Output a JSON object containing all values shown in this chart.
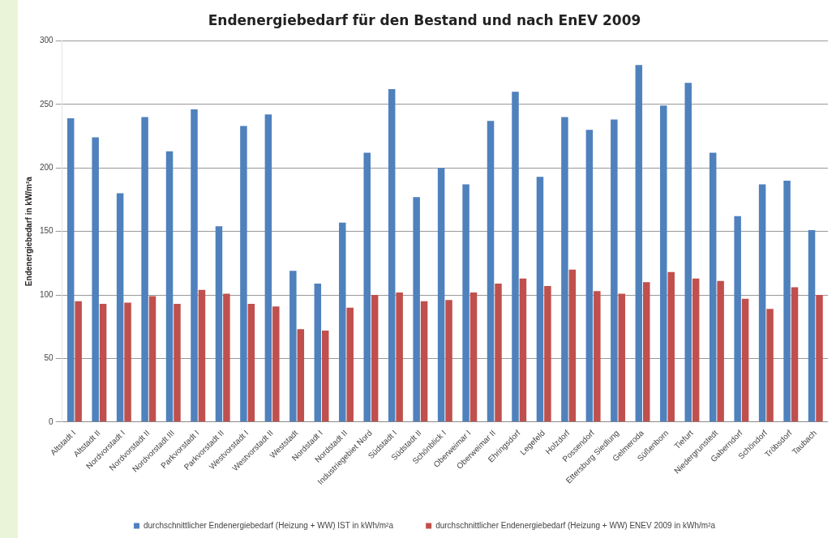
{
  "chart_data": {
    "type": "bar",
    "title": "Endenergiebedarf für den Bestand und nach EnEV 2009",
    "ylabel": "Endenergiebedarf in kW/m²a",
    "categories": [
      "Altstadt I",
      "Altstadt II",
      "Nordvorstadt I",
      "Nordvorstadt II",
      "Nordvorstadt III",
      "Parkvorstadt I",
      "Parkvorstadt II",
      "Westvorstadt I",
      "Westvorstadt II",
      "Weststadt",
      "Nordstadt I",
      "Nordstadt II",
      "Industriegebiet Nord",
      "Südstadt I",
      "Südstadt II",
      "Schönblick I",
      "Oberweimar I",
      "Oberweimar II",
      "Ehringsdorf",
      "Legefeld",
      "Holzdorf",
      "Possendorf",
      "Ettersburg Siedlung",
      "Gelmeroda",
      "Süßenborn",
      "Tiefurt",
      "Niedergrunstedt",
      "Gaberndorf",
      "Schöndorf",
      "Tröbsdorf",
      "Taubach"
    ],
    "series": [
      {
        "name": "durchschnittlicher Endenergiebedarf (Heizung + WW) IST in kWh/m²a",
        "color": "#4f81bd",
        "values": [
          239,
          224,
          180,
          240,
          213,
          246,
          154,
          233,
          242,
          119,
          109,
          157,
          212,
          262,
          177,
          200,
          187,
          237,
          260,
          193,
          240,
          230,
          238,
          281,
          249,
          267,
          212,
          162,
          187,
          190,
          151
        ]
      },
      {
        "name": "durchschnittlicher Endenergiebedarf (Heizung + WW) ENEV 2009 in kWh/m²a",
        "color": "#c0504d",
        "values": [
          95,
          93,
          94,
          99,
          93,
          104,
          101,
          93,
          91,
          73,
          72,
          90,
          100,
          102,
          95,
          96,
          102,
          109,
          113,
          107,
          120,
          103,
          101,
          110,
          118,
          113,
          111,
          97,
          89,
          106,
          100
        ]
      }
    ],
    "ylim": [
      0,
      300
    ],
    "yticks": [
      0,
      50,
      100,
      150,
      200,
      250,
      300
    ],
    "grid": "y",
    "legend": "bottom"
  }
}
